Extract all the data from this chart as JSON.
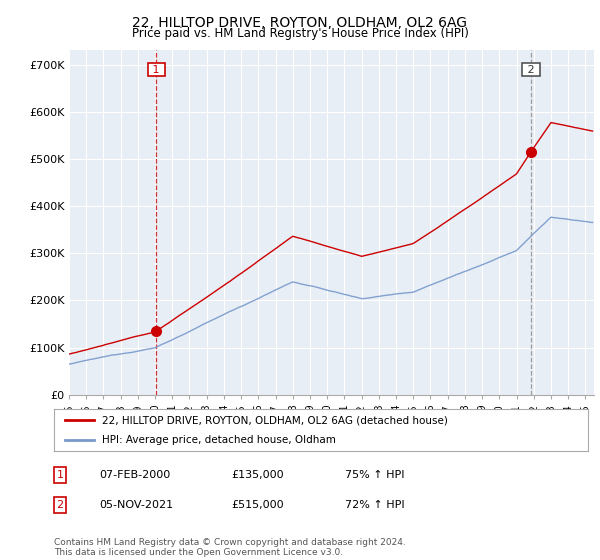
{
  "title": "22, HILLTOP DRIVE, ROYTON, OLDHAM, OL2 6AG",
  "subtitle": "Price paid vs. HM Land Registry's House Price Index (HPI)",
  "title_fontsize": 10,
  "subtitle_fontsize": 8.5,
  "ylabel_ticks": [
    "£0",
    "£100K",
    "£200K",
    "£300K",
    "£400K",
    "£500K",
    "£600K",
    "£700K"
  ],
  "ytick_vals": [
    0,
    100000,
    200000,
    300000,
    400000,
    500000,
    600000,
    700000
  ],
  "ylim": [
    0,
    730000
  ],
  "xlim_start": 1995.0,
  "xlim_end": 2025.5,
  "sale1_date": 2000.08,
  "sale1_price": 135000,
  "sale2_date": 2021.84,
  "sale2_price": 515000,
  "legend_line1": "22, HILLTOP DRIVE, ROYTON, OLDHAM, OL2 6AG (detached house)",
  "legend_line2": "HPI: Average price, detached house, Oldham",
  "table_rows": [
    {
      "num": "1",
      "date": "07-FEB-2000",
      "price": "£135,000",
      "pct": "75% ↑ HPI"
    },
    {
      "num": "2",
      "date": "05-NOV-2021",
      "price": "£515,000",
      "pct": "72% ↑ HPI"
    }
  ],
  "footer": "Contains HM Land Registry data © Crown copyright and database right 2024.\nThis data is licensed under the Open Government Licence v3.0.",
  "red_color": "#cc0000",
  "blue_color": "#7799cc",
  "sale2_vline_color": "#888888",
  "background_color": "#ffffff",
  "chart_bg_color": "#e8eef5",
  "grid_color": "#ffffff"
}
